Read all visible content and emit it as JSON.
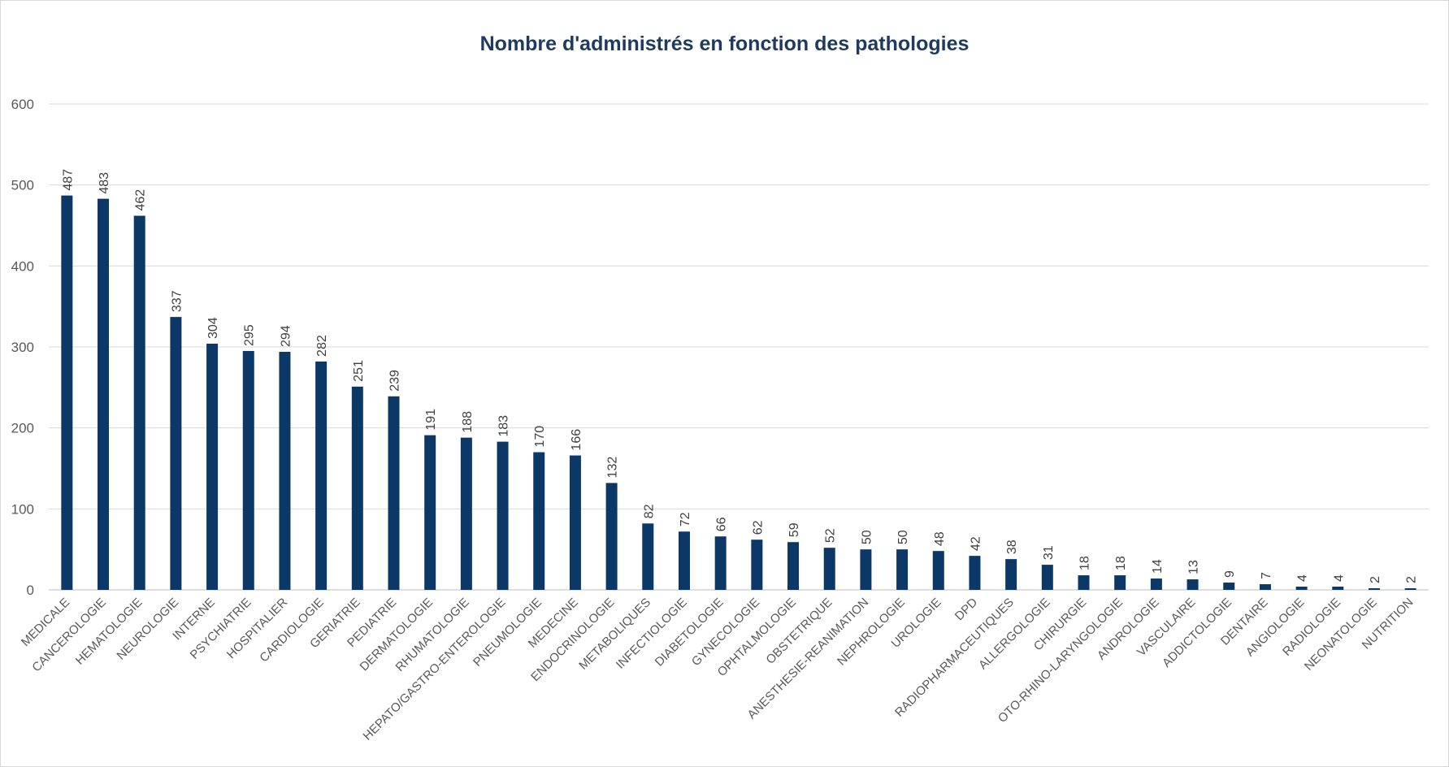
{
  "chart_data": {
    "type": "bar",
    "title": "Nombre d'administrés en fonction des pathologies",
    "xlabel": "",
    "ylabel": "",
    "ylim": [
      0,
      600
    ],
    "yticks": [
      0,
      100,
      200,
      300,
      400,
      500,
      600
    ],
    "grid": true,
    "legend": "none",
    "bar_color": "#0b3866",
    "categories": [
      "MEDICALE",
      "CANCEROLOGIE",
      "HEMATOLOGIE",
      "NEUROLOGIE",
      "INTERNE",
      "PSYCHIATRIE",
      "HOSPITALIER",
      "CARDIOLOGIE",
      "GERIATRIE",
      "PEDIATRIE",
      "DERMATOLOGIE",
      "RHUMATOLOGIE",
      "HEPATO/GASTRO-ENTEROLOGIE",
      "PNEUMOLOGIE",
      "MEDECINE",
      "ENDOCRINOLOGIE",
      "METABOLIQUES",
      "INFECTIOLOGIE",
      "DIABETOLOGIE",
      "GYNECOLOGIE",
      "OPHTALMOLOGIE",
      "OBSTETRIQUE",
      "ANESTHESIE-REANIMATION",
      "NEPHROLOGIE",
      "UROLOGIE",
      "DPD",
      "RADIOPHARMACEUTIQUES",
      "ALLERGOLOGIE",
      "CHIRURGIE",
      "OTO-RHINO-LARYNGOLOGIE",
      "ANDROLOGIE",
      "VASCULAIRE",
      "ADDICTOLOGIE",
      "DENTAIRE",
      "ANGIOLOGIE",
      "RADIOLOGIE",
      "NEONATOLOGIE",
      "NUTRITION"
    ],
    "values": [
      487,
      483,
      462,
      337,
      304,
      295,
      294,
      282,
      251,
      239,
      191,
      188,
      183,
      170,
      166,
      132,
      82,
      72,
      66,
      62,
      59,
      52,
      50,
      50,
      48,
      42,
      38,
      31,
      18,
      18,
      14,
      13,
      9,
      7,
      4,
      4,
      2,
      2
    ]
  }
}
